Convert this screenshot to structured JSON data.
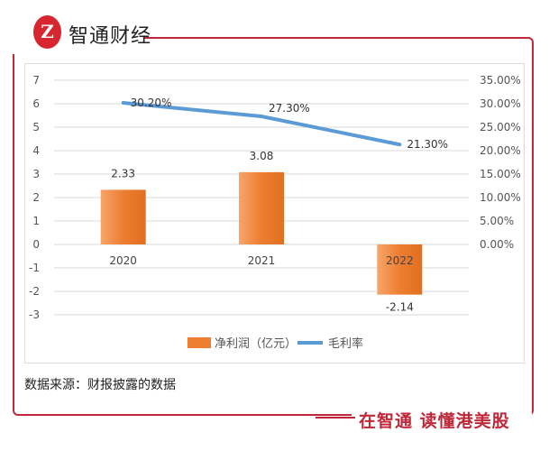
{
  "brand": {
    "logo_mark": "Z",
    "name": "智通财经",
    "slogan": "在智通 读懂港美股"
  },
  "source": "数据来源：财报披露的数据",
  "colors": {
    "bar": "#ED7D31",
    "line": "#5B9BD5",
    "frame": "#c0283a"
  },
  "chart_data": {
    "type": "bar+line",
    "categories": [
      "2020",
      "2021",
      "2022"
    ],
    "series": [
      {
        "name": "净利润（亿元）",
        "type": "bar",
        "axis": "left",
        "values": [
          2.33,
          3.08,
          -2.14
        ],
        "labels": [
          "2.33",
          "3.08",
          "-2.14"
        ]
      },
      {
        "name": "毛利率",
        "type": "line",
        "axis": "right",
        "values": [
          30.2,
          27.3,
          21.3
        ],
        "labels": [
          "30.20%",
          "27.30%",
          "21.30%"
        ]
      }
    ],
    "left_axis": {
      "ylim": [
        -3,
        7
      ],
      "ticks": [
        "7",
        "6",
        "5",
        "4",
        "3",
        "2",
        "1",
        "0",
        "-1",
        "-2",
        "-3"
      ]
    },
    "right_axis": {
      "ylim": [
        -15,
        35
      ],
      "ticks": [
        "35.00%",
        "30.00%",
        "25.00%",
        "20.00%",
        "15.00%",
        "10.00%",
        "5.00%",
        "0.00%"
      ]
    },
    "grid": true,
    "legend_position": "bottom"
  }
}
